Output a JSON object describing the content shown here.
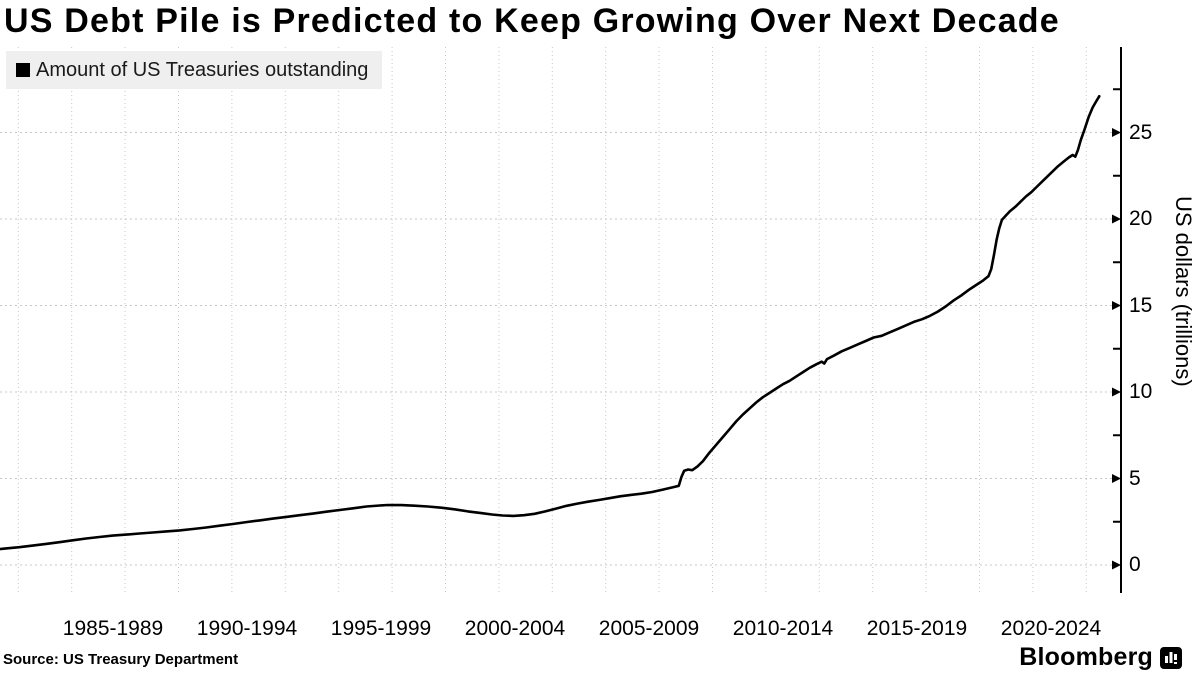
{
  "title": "US Debt Pile is Predicted to Keep Growing Over Next Decade",
  "legend": {
    "label": "Amount of US Treasuries outstanding",
    "swatch_color": "#000000",
    "background": "#efefef"
  },
  "source": "Source: US Treasury Department",
  "brand": {
    "name": "Bloomberg",
    "icon": "bloomberg-terminal-icon"
  },
  "colors": {
    "line": "#000000",
    "grid": "#c8c8c8",
    "axis": "#000000",
    "text": "#000000",
    "background": "#ffffff"
  },
  "chart_data": {
    "type": "line",
    "title": "US Debt Pile is Predicted to Keep Growing Over Next Decade",
    "series_name": "Amount of US Treasuries outstanding",
    "xlabel": "",
    "ylabel": "US dollars (trillions)",
    "x_tick_labels": [
      "1985-1989",
      "1990-1994",
      "1995-1999",
      "2000-2004",
      "2005-2009",
      "2010-2014",
      "2015-2019",
      "2020-2024"
    ],
    "yticks": [
      0,
      5,
      10,
      15,
      20,
      25
    ],
    "ylim": [
      -1.6,
      30
    ],
    "xlim_years": [
      1982.75,
      2024.7
    ],
    "grid": "dotted",
    "legend_position": "top-left",
    "x_units": "years (5-year ranges)",
    "y_units": "USD trillions",
    "points": [
      [
        1982.75,
        0.92
      ],
      [
        1983,
        0.96
      ],
      [
        1983.5,
        1.03
      ],
      [
        1984,
        1.12
      ],
      [
        1984.5,
        1.22
      ],
      [
        1985,
        1.32
      ],
      [
        1985.5,
        1.43
      ],
      [
        1986,
        1.53
      ],
      [
        1986.5,
        1.62
      ],
      [
        1987,
        1.7
      ],
      [
        1987.5,
        1.76
      ],
      [
        1988,
        1.82
      ],
      [
        1988.5,
        1.88
      ],
      [
        1989,
        1.94
      ],
      [
        1989.5,
        2.0
      ],
      [
        1990,
        2.08
      ],
      [
        1990.5,
        2.17
      ],
      [
        1991,
        2.27
      ],
      [
        1991.5,
        2.37
      ],
      [
        1992,
        2.48
      ],
      [
        1992.5,
        2.58
      ],
      [
        1993,
        2.68
      ],
      [
        1993.5,
        2.78
      ],
      [
        1994,
        2.88
      ],
      [
        1994.5,
        2.97
      ],
      [
        1995,
        3.08
      ],
      [
        1995.5,
        3.18
      ],
      [
        1996,
        3.28
      ],
      [
        1996.5,
        3.38
      ],
      [
        1997,
        3.44
      ],
      [
        1997.3,
        3.47
      ],
      [
        1997.8,
        3.46
      ],
      [
        1998.3,
        3.43
      ],
      [
        1998.8,
        3.38
      ],
      [
        1999.3,
        3.31
      ],
      [
        1999.8,
        3.22
      ],
      [
        2000.3,
        3.1
      ],
      [
        2000.8,
        3.0
      ],
      [
        2001.2,
        2.92
      ],
      [
        2001.6,
        2.86
      ],
      [
        2002,
        2.84
      ],
      [
        2002.4,
        2.88
      ],
      [
        2002.8,
        2.96
      ],
      [
        2003.2,
        3.1
      ],
      [
        2003.6,
        3.26
      ],
      [
        2004,
        3.42
      ],
      [
        2004.4,
        3.55
      ],
      [
        2004.8,
        3.66
      ],
      [
        2005.2,
        3.76
      ],
      [
        2005.6,
        3.86
      ],
      [
        2006,
        3.97
      ],
      [
        2006.4,
        4.05
      ],
      [
        2006.8,
        4.12
      ],
      [
        2007.2,
        4.22
      ],
      [
        2007.6,
        4.36
      ],
      [
        2008,
        4.5
      ],
      [
        2008.2,
        4.58
      ],
      [
        2008.3,
        5.1
      ],
      [
        2008.4,
        5.45
      ],
      [
        2008.55,
        5.52
      ],
      [
        2008.7,
        5.48
      ],
      [
        2008.9,
        5.7
      ],
      [
        2009.1,
        6.0
      ],
      [
        2009.35,
        6.5
      ],
      [
        2009.6,
        6.95
      ],
      [
        2009.85,
        7.4
      ],
      [
        2010.1,
        7.85
      ],
      [
        2010.35,
        8.3
      ],
      [
        2010.6,
        8.7
      ],
      [
        2010.85,
        9.05
      ],
      [
        2011.1,
        9.4
      ],
      [
        2011.35,
        9.7
      ],
      [
        2011.6,
        9.95
      ],
      [
        2011.85,
        10.2
      ],
      [
        2012.1,
        10.45
      ],
      [
        2012.35,
        10.65
      ],
      [
        2012.6,
        10.9
      ],
      [
        2012.85,
        11.15
      ],
      [
        2013.1,
        11.4
      ],
      [
        2013.35,
        11.6
      ],
      [
        2013.55,
        11.75
      ],
      [
        2013.65,
        11.65
      ],
      [
        2013.75,
        11.9
      ],
      [
        2014,
        12.1
      ],
      [
        2014.3,
        12.35
      ],
      [
        2014.6,
        12.55
      ],
      [
        2014.9,
        12.75
      ],
      [
        2015.2,
        12.95
      ],
      [
        2015.5,
        13.15
      ],
      [
        2015.8,
        13.25
      ],
      [
        2016.1,
        13.45
      ],
      [
        2016.4,
        13.65
      ],
      [
        2016.7,
        13.85
      ],
      [
        2017,
        14.05
      ],
      [
        2017.3,
        14.2
      ],
      [
        2017.6,
        14.4
      ],
      [
        2017.9,
        14.65
      ],
      [
        2018.2,
        14.95
      ],
      [
        2018.5,
        15.3
      ],
      [
        2018.8,
        15.6
      ],
      [
        2019.1,
        15.95
      ],
      [
        2019.4,
        16.25
      ],
      [
        2019.6,
        16.45
      ],
      [
        2019.8,
        16.7
      ],
      [
        2019.9,
        17.1
      ],
      [
        2020,
        17.9
      ],
      [
        2020.1,
        18.8
      ],
      [
        2020.2,
        19.45
      ],
      [
        2020.3,
        19.95
      ],
      [
        2020.45,
        20.2
      ],
      [
        2020.6,
        20.45
      ],
      [
        2020.8,
        20.7
      ],
      [
        2021,
        21.0
      ],
      [
        2021.2,
        21.3
      ],
      [
        2021.4,
        21.55
      ],
      [
        2021.6,
        21.85
      ],
      [
        2021.8,
        22.15
      ],
      [
        2022,
        22.45
      ],
      [
        2022.2,
        22.75
      ],
      [
        2022.4,
        23.05
      ],
      [
        2022.6,
        23.3
      ],
      [
        2022.8,
        23.55
      ],
      [
        2022.95,
        23.7
      ],
      [
        2023.05,
        23.6
      ],
      [
        2023.15,
        24.0
      ],
      [
        2023.25,
        24.55
      ],
      [
        2023.4,
        25.2
      ],
      [
        2023.55,
        25.9
      ],
      [
        2023.7,
        26.45
      ],
      [
        2023.85,
        26.85
      ],
      [
        2023.95,
        27.1
      ]
    ]
  }
}
